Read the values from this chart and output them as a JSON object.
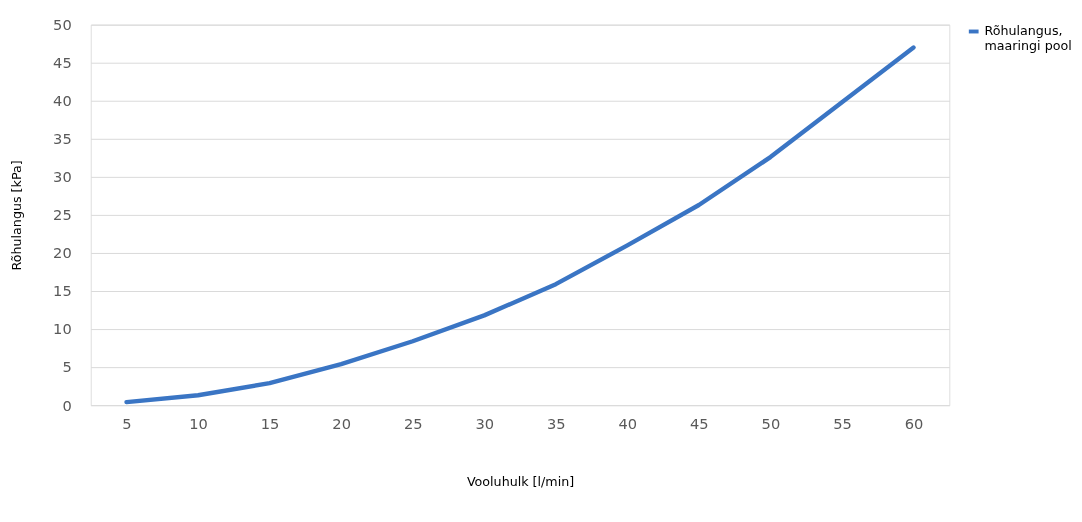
{
  "chart_data": {
    "type": "line",
    "xlabel": "Vooluhulk [l/min]",
    "ylabel": "Rõhulangus [kPa]",
    "categories": [
      "5",
      "10",
      "15",
      "20",
      "25",
      "30",
      "35",
      "40",
      "45",
      "50",
      "55",
      "60"
    ],
    "series": [
      {
        "name": "Rõhulangus,\nmaaringi pool",
        "color": "#3a75c4",
        "values": [
          0.4,
          1.3,
          2.9,
          5.4,
          8.4,
          11.8,
          15.9,
          21,
          26.3,
          32.6,
          39.8,
          47
        ]
      }
    ],
    "ylim": [
      0,
      50
    ],
    "yticks": [
      0,
      5,
      10,
      15,
      20,
      25,
      30,
      35,
      40,
      45,
      50
    ],
    "grid": "y",
    "legend": "right",
    "marker": "none",
    "line_style": "solid"
  }
}
